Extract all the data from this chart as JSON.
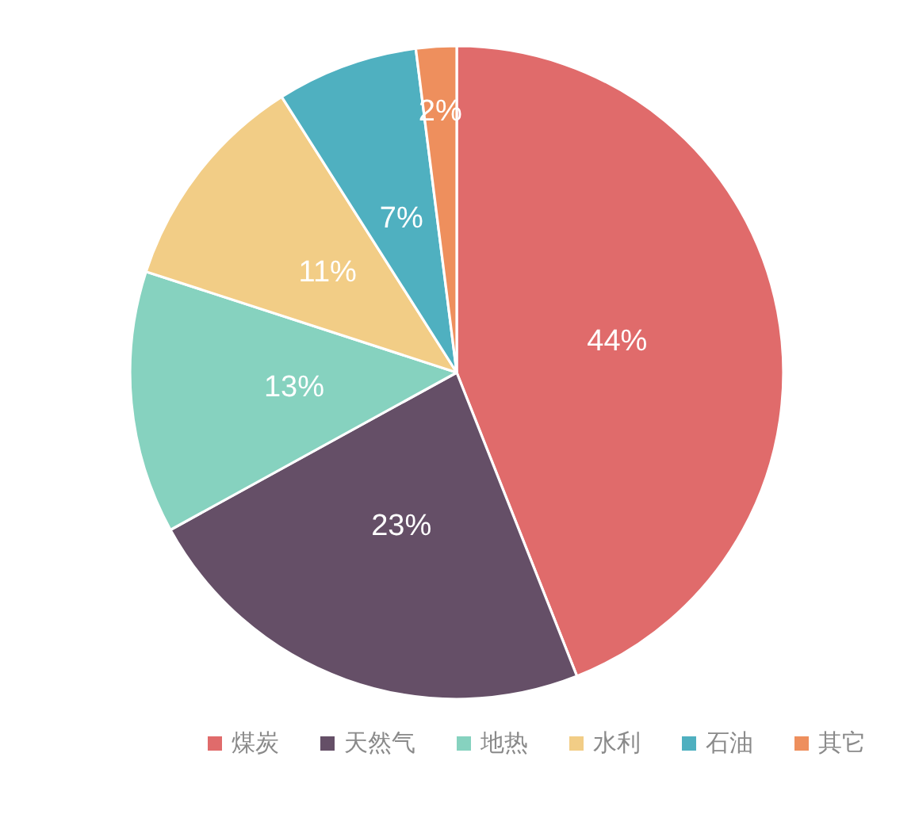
{
  "chart_data": {
    "type": "pie",
    "categories": [
      "煤炭",
      "天然气",
      "地热",
      "水利",
      "石油",
      "其它"
    ],
    "values": [
      44,
      23,
      13,
      11,
      7,
      2
    ],
    "colors": [
      "#e06b6b",
      "#654f67",
      "#86d2bf",
      "#f2cd86",
      "#4fb0c0",
      "#ee8f5d"
    ],
    "value_labels": [
      "44%",
      "23%",
      "13%",
      "11%",
      "7%",
      "2%"
    ],
    "legend": "bottom"
  }
}
